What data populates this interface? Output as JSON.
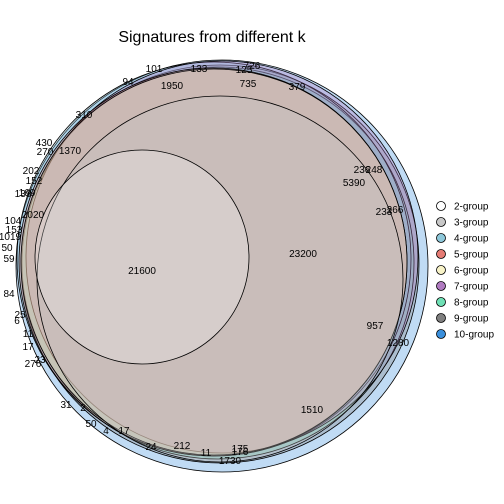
{
  "chart_data": {
    "type": "euler",
    "title": "Signatures from different k",
    "colors": {
      "2-group": "#ffffff",
      "3-group": "#c8c8c8",
      "4-group": "#8ec8da",
      "5-group": "#e57b74",
      "6-group": "#f8f3c8",
      "7-group": "#b07ac0",
      "8-group": "#6fe0b5",
      "9-group": "#7f7f7f",
      "10-group": "#3a8fdc"
    },
    "legend": [
      "2-group",
      "3-group",
      "4-group",
      "5-group",
      "6-group",
      "7-group",
      "8-group",
      "9-group",
      "10-group"
    ],
    "legend_position": "right",
    "counts": [
      "21600",
      "23200",
      "5390",
      "1950",
      "1370",
      "2020",
      "1510",
      "1730",
      "1280",
      "957",
      "726",
      "735",
      "379",
      "125",
      "133",
      "101",
      "94",
      "310",
      "430",
      "270",
      "202",
      "152",
      "169",
      "139",
      "104",
      "153",
      "1019",
      "50",
      "59",
      "84",
      "25",
      "6",
      "11",
      "17",
      "23",
      "276",
      "212",
      "24",
      "11",
      "175",
      "176",
      "17",
      "4",
      "50",
      "2",
      "31",
      "236",
      "248",
      "233",
      "266"
    ]
  }
}
